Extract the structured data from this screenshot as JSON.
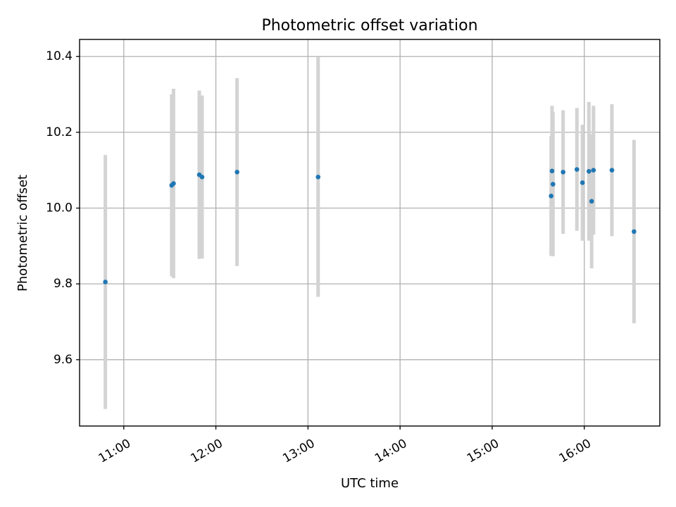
{
  "chart_data": {
    "type": "scatter",
    "title": "Photometric offset variation",
    "xlabel": "UTC time",
    "ylabel": "Photometric offset",
    "x_unit": "hours UTC",
    "xlim": [
      10.52,
      16.82
    ],
    "ylim": [
      9.425,
      10.445
    ],
    "x_ticks": [
      {
        "value": 11,
        "label": "11:00"
      },
      {
        "value": 12,
        "label": "12:00"
      },
      {
        "value": 13,
        "label": "13:00"
      },
      {
        "value": 14,
        "label": "14:00"
      },
      {
        "value": 15,
        "label": "15:00"
      },
      {
        "value": 16,
        "label": "16:00"
      }
    ],
    "y_ticks": [
      {
        "value": 9.6,
        "label": "9.6"
      },
      {
        "value": 9.8,
        "label": "9.8"
      },
      {
        "value": 10.0,
        "label": "10.0"
      },
      {
        "value": 10.2,
        "label": "10.2"
      },
      {
        "value": 10.4,
        "label": "10.4"
      }
    ],
    "grid": true,
    "marker_color": "#1f77b4",
    "errorbar_color": "#d3d3d3",
    "points": [
      {
        "x": 10.8,
        "y": 9.805,
        "err": 0.335
      },
      {
        "x": 11.52,
        "y": 10.06,
        "err": 0.24
      },
      {
        "x": 11.54,
        "y": 10.065,
        "err": 0.25
      },
      {
        "x": 11.82,
        "y": 10.088,
        "err": 0.222
      },
      {
        "x": 11.85,
        "y": 10.082,
        "err": 0.215
      },
      {
        "x": 12.23,
        "y": 10.095,
        "err": 0.248
      },
      {
        "x": 13.11,
        "y": 10.082,
        "err": 0.316
      },
      {
        "x": 15.64,
        "y": 10.032,
        "err": 0.158
      },
      {
        "x": 15.65,
        "y": 10.098,
        "err": 0.172
      },
      {
        "x": 15.66,
        "y": 10.063,
        "err": 0.19
      },
      {
        "x": 15.77,
        "y": 10.095,
        "err": 0.163
      },
      {
        "x": 15.92,
        "y": 10.102,
        "err": 0.162
      },
      {
        "x": 15.98,
        "y": 10.067,
        "err": 0.153
      },
      {
        "x": 16.05,
        "y": 10.097,
        "err": 0.183
      },
      {
        "x": 16.08,
        "y": 10.018,
        "err": 0.177
      },
      {
        "x": 16.1,
        "y": 10.1,
        "err": 0.17
      },
      {
        "x": 16.3,
        "y": 10.1,
        "err": 0.174
      },
      {
        "x": 16.54,
        "y": 9.938,
        "err": 0.242
      }
    ]
  }
}
